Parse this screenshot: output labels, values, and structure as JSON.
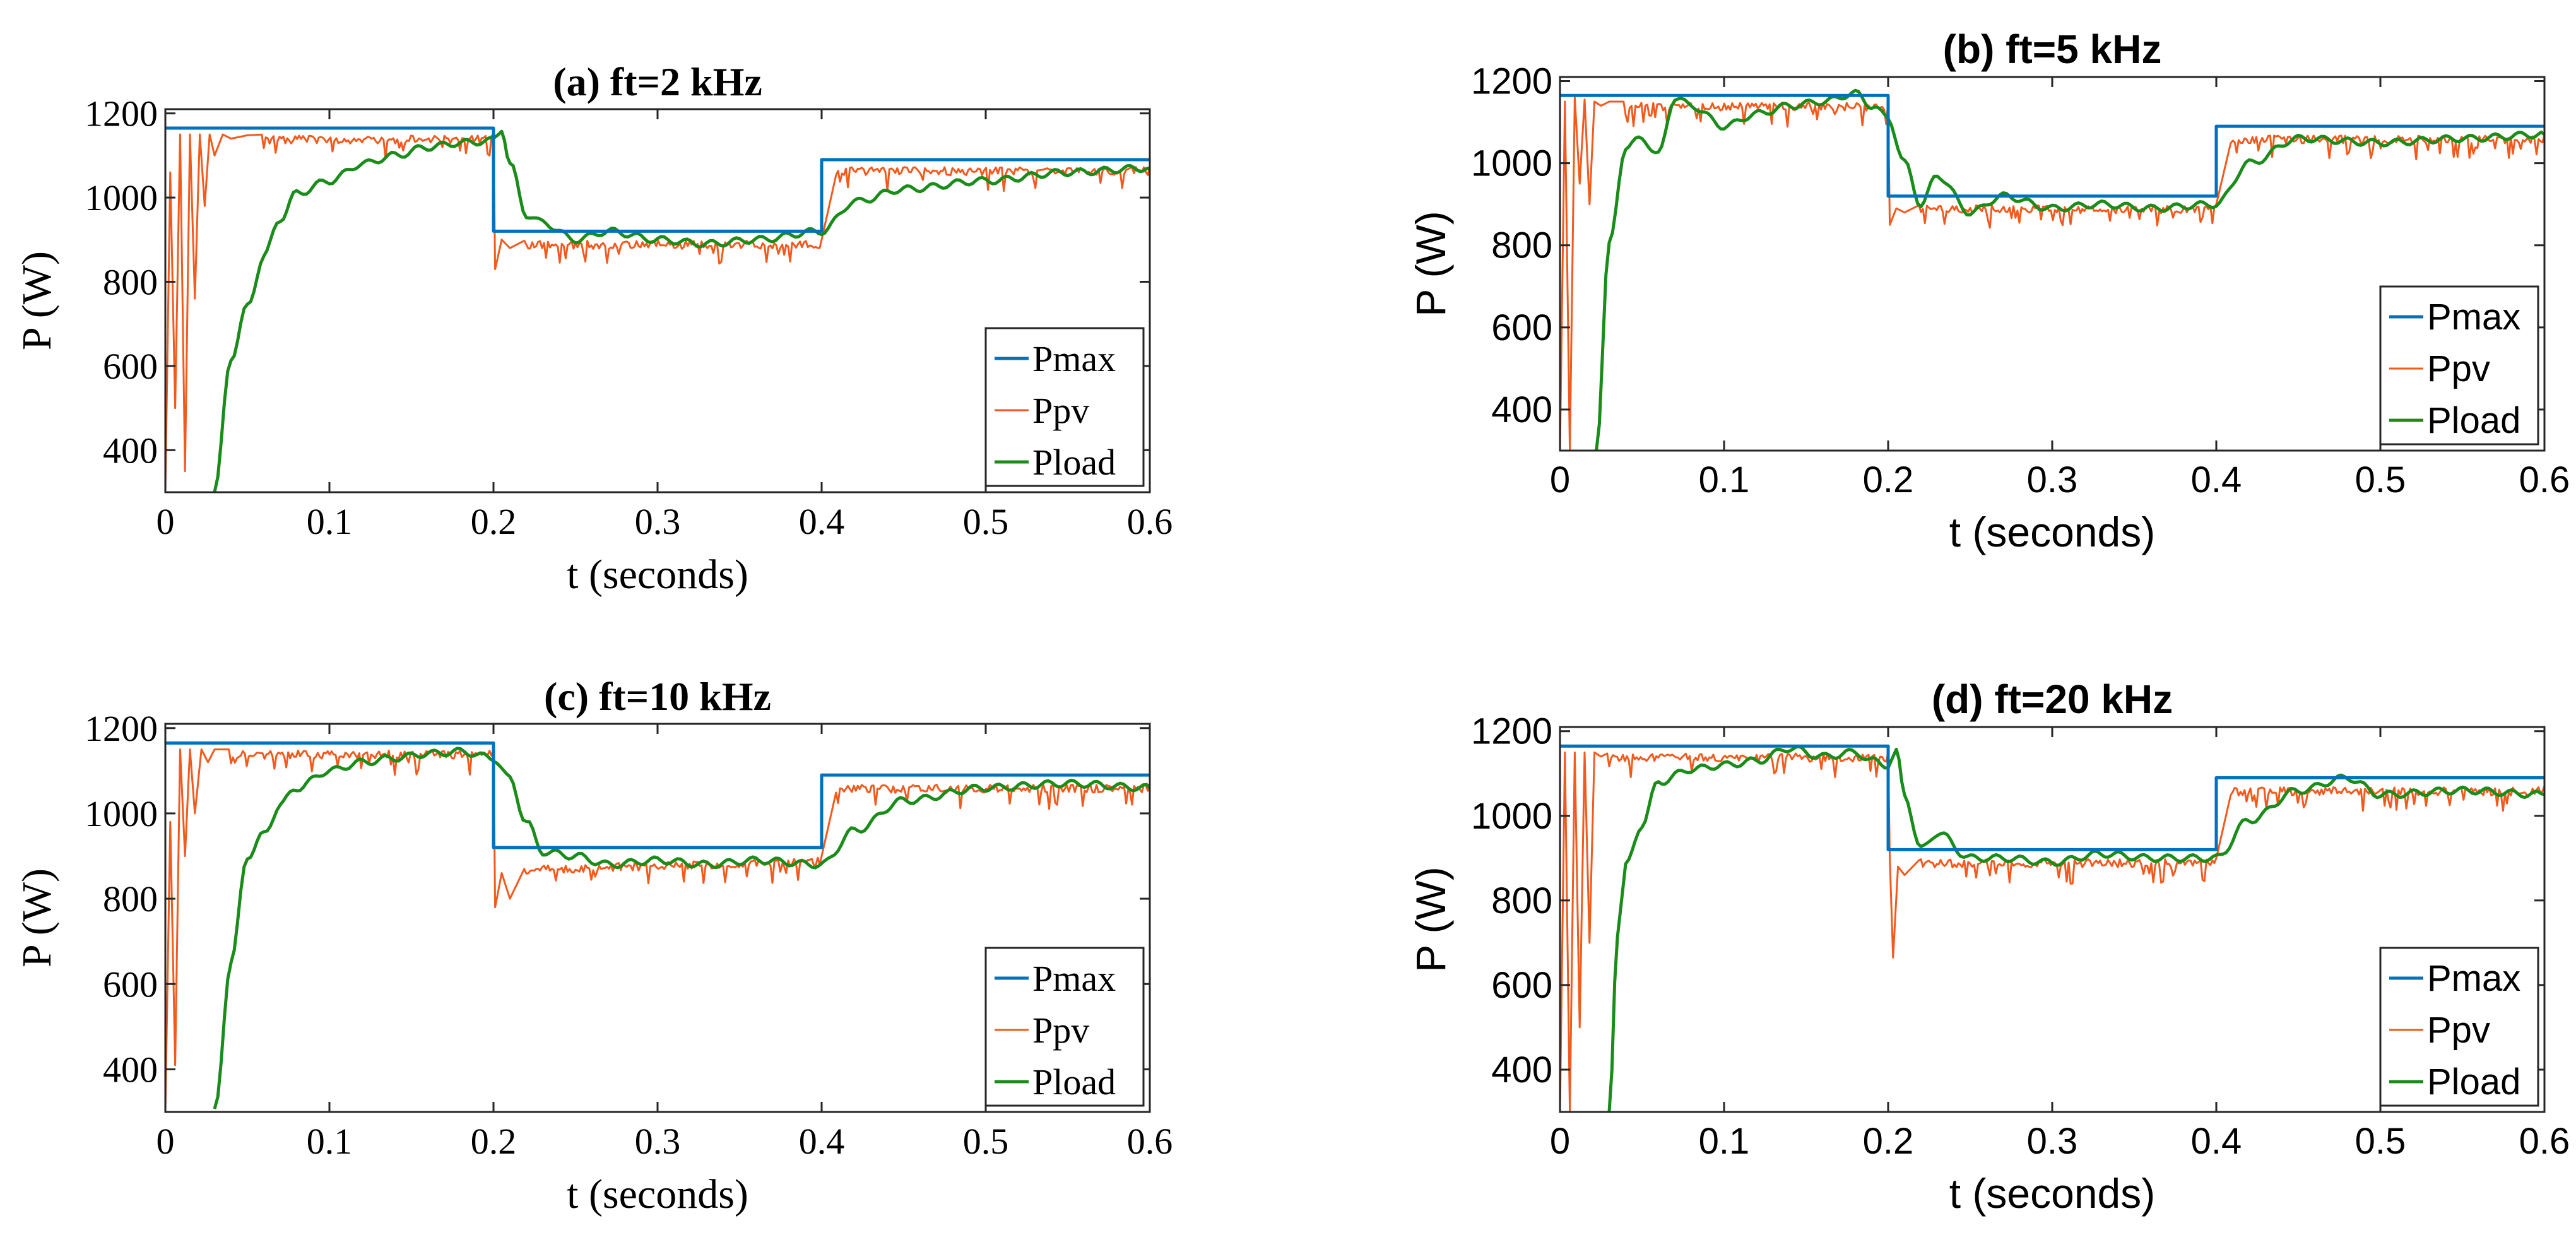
{
  "figure": {
    "colors": {
      "Pmax": "#0072BD",
      "Ppv": "#F25A1D",
      "Pload": "#1A8C1A",
      "axis": "#262626",
      "text": "#000000"
    }
  },
  "chart_data": [
    {
      "type": "line",
      "title": "(a) ft=2 kHz",
      "xlabel": "t (seconds)",
      "ylabel": "P (W)",
      "xlim": [
        0,
        0.6
      ],
      "ylim": [
        300,
        1210
      ],
      "xticks": [
        0,
        0.1,
        0.2,
        0.3,
        0.4,
        0.5,
        0.6
      ],
      "xtick_labels": [
        "0",
        "0.1",
        "0.2",
        "0.3",
        "0.4",
        "0.5",
        "0.6"
      ],
      "yticks": [
        400,
        600,
        800,
        1000,
        1200
      ],
      "ytick_labels": [
        "400",
        "600",
        "800",
        "1000",
        "1200"
      ],
      "legend": {
        "entries": [
          "Pmax",
          "Ppv",
          "Pload"
        ],
        "position": "bottom-right"
      },
      "series": [
        {
          "name": "Pmax",
          "x": [
            0,
            0.2,
            0.2,
            0.4,
            0.4,
            0.6
          ],
          "values": [
            1165,
            1165,
            920,
            920,
            1090,
            1090
          ]
        },
        {
          "name": "Ppv",
          "x": [
            0,
            0.003,
            0.006,
            0.009,
            0.012,
            0.015,
            0.018,
            0.021,
            0.024,
            0.027,
            0.03,
            0.035,
            0.04,
            0.05,
            0.06,
            0.2,
            0.201,
            0.205,
            0.21,
            0.22,
            0.4,
            0.41,
            0.6
          ],
          "values": [
            300,
            1060,
            500,
            1150,
            350,
            1150,
            760,
            1150,
            980,
            1150,
            1100,
            1150,
            1140,
            1148,
            1150,
            1150,
            830,
            900,
            880,
            900,
            900,
            1075,
            1075
          ]
        },
        {
          "name": "Pload",
          "x": [
            0.03,
            0.04,
            0.05,
            0.06,
            0.07,
            0.08,
            0.1,
            0.12,
            0.14,
            0.16,
            0.18,
            0.2,
            0.205,
            0.21,
            0.22,
            0.23,
            0.25,
            0.27,
            0.3,
            0.33,
            0.36,
            0.4,
            0.42,
            0.45,
            0.5,
            0.55,
            0.6
          ],
          "values": [
            300,
            620,
            740,
            860,
            950,
            1010,
            1040,
            1080,
            1100,
            1120,
            1130,
            1135,
            1165,
            1080,
            960,
            940,
            900,
            920,
            900,
            890,
            900,
            920,
            990,
            1020,
            1040,
            1060,
            1070
          ]
        }
      ]
    },
    {
      "type": "line",
      "title": "(b) ft=5 kHz",
      "xlabel": "t (seconds)",
      "ylabel": "P (W)",
      "xlim": [
        0,
        0.6
      ],
      "ylim": [
        300,
        1210
      ],
      "xticks": [
        0,
        0.1,
        0.2,
        0.3,
        0.4,
        0.5,
        0.6
      ],
      "xtick_labels": [
        "0",
        "0.1",
        "0.2",
        "0.3",
        "0.4",
        "0.5",
        "0.6"
      ],
      "yticks": [
        400,
        600,
        800,
        1000,
        1200
      ],
      "ytick_labels": [
        "400",
        "600",
        "800",
        "1000",
        "1200"
      ],
      "legend": {
        "entries": [
          "Pmax",
          "Ppv",
          "Pload"
        ],
        "position": "bottom-right"
      },
      "series": [
        {
          "name": "Pmax",
          "x": [
            0,
            0.2,
            0.2,
            0.4,
            0.4,
            0.6
          ],
          "values": [
            1165,
            1165,
            920,
            920,
            1090,
            1090
          ]
        },
        {
          "name": "Ppv",
          "x": [
            0,
            0.003,
            0.006,
            0.009,
            0.012,
            0.015,
            0.018,
            0.021,
            0.025,
            0.03,
            0.04,
            0.2,
            0.201,
            0.205,
            0.21,
            0.22,
            0.4,
            0.41,
            0.6
          ],
          "values": [
            300,
            1150,
            300,
            1160,
            950,
            1155,
            900,
            1150,
            1140,
            1150,
            1150,
            1150,
            850,
            890,
            880,
            900,
            900,
            1070,
            1070
          ]
        },
        {
          "name": "Pload",
          "x": [
            0.022,
            0.03,
            0.04,
            0.05,
            0.06,
            0.07,
            0.08,
            0.1,
            0.12,
            0.14,
            0.16,
            0.18,
            0.19,
            0.2,
            0.21,
            0.22,
            0.23,
            0.25,
            0.27,
            0.3,
            0.33,
            0.36,
            0.4,
            0.42,
            0.45,
            0.5,
            0.55,
            0.6
          ],
          "values": [
            300,
            800,
            1040,
            1060,
            1020,
            1160,
            1140,
            1090,
            1120,
            1140,
            1150,
            1170,
            1140,
            1110,
            1000,
            900,
            970,
            880,
            920,
            890,
            900,
            890,
            900,
            1000,
            1060,
            1050,
            1060,
            1070
          ]
        }
      ]
    },
    {
      "type": "line",
      "title": "(c) ft=10 kHz",
      "xlabel": "t (seconds)",
      "ylabel": "P (W)",
      "xlim": [
        0,
        0.6
      ],
      "ylim": [
        300,
        1210
      ],
      "xticks": [
        0,
        0.1,
        0.2,
        0.3,
        0.4,
        0.5,
        0.6
      ],
      "xtick_labels": [
        "0",
        "0.1",
        "0.2",
        "0.3",
        "0.4",
        "0.5",
        "0.6"
      ],
      "yticks": [
        400,
        600,
        800,
        1000,
        1200
      ],
      "ytick_labels": [
        "400",
        "600",
        "800",
        "1000",
        "1200"
      ],
      "legend": {
        "entries": [
          "Pmax",
          "Ppv",
          "Pload"
        ],
        "position": "bottom-right"
      },
      "series": [
        {
          "name": "Pmax",
          "x": [
            0,
            0.2,
            0.2,
            0.4,
            0.4,
            0.6
          ],
          "values": [
            1165,
            1165,
            920,
            920,
            1090,
            1090
          ]
        },
        {
          "name": "Ppv",
          "x": [
            0,
            0.003,
            0.006,
            0.009,
            0.012,
            0.015,
            0.018,
            0.022,
            0.026,
            0.03,
            0.04,
            0.2,
            0.201,
            0.205,
            0.21,
            0.22,
            0.4,
            0.41,
            0.6
          ],
          "values": [
            300,
            980,
            410,
            1150,
            900,
            1150,
            1000,
            1150,
            1120,
            1150,
            1150,
            1150,
            780,
            860,
            800,
            880,
            900,
            1070,
            1070
          ]
        },
        {
          "name": "Pload",
          "x": [
            0.03,
            0.04,
            0.05,
            0.06,
            0.07,
            0.08,
            0.1,
            0.12,
            0.14,
            0.16,
            0.18,
            0.2,
            0.21,
            0.22,
            0.23,
            0.25,
            0.27,
            0.3,
            0.33,
            0.36,
            0.4,
            0.42,
            0.45,
            0.5,
            0.55,
            0.6
          ],
          "values": [
            300,
            650,
            900,
            950,
            1020,
            1060,
            1100,
            1120,
            1130,
            1140,
            1145,
            1130,
            1080,
            980,
            910,
            900,
            880,
            890,
            880,
            890,
            880,
            960,
            1030,
            1060,
            1070,
            1060
          ]
        }
      ]
    },
    {
      "type": "line",
      "title": "(d) ft=20 kHz",
      "xlabel": "t (seconds)",
      "ylabel": "P (W)",
      "xlim": [
        0,
        0.6
      ],
      "ylim": [
        300,
        1210
      ],
      "xticks": [
        0,
        0.1,
        0.2,
        0.3,
        0.4,
        0.5,
        0.6
      ],
      "xtick_labels": [
        "0",
        "0.1",
        "0.2",
        "0.3",
        "0.4",
        "0.5",
        "0.6"
      ],
      "yticks": [
        400,
        600,
        800,
        1000,
        1200
      ],
      "ytick_labels": [
        "400",
        "600",
        "800",
        "1000",
        "1200"
      ],
      "legend": {
        "entries": [
          "Pmax",
          "Ppv",
          "Pload"
        ],
        "position": "bottom-right"
      },
      "series": [
        {
          "name": "Pmax",
          "x": [
            0,
            0.2,
            0.2,
            0.4,
            0.4,
            0.6
          ],
          "values": [
            1165,
            1165,
            920,
            920,
            1090,
            1090
          ]
        },
        {
          "name": "Ppv",
          "x": [
            0,
            0.003,
            0.006,
            0.009,
            0.012,
            0.015,
            0.018,
            0.021,
            0.025,
            0.03,
            0.2,
            0.201,
            0.203,
            0.206,
            0.21,
            0.22,
            0.4,
            0.41,
            0.6
          ],
          "values": [
            300,
            1150,
            300,
            1150,
            500,
            1150,
            700,
            1150,
            1140,
            1150,
            1150,
            900,
            665,
            880,
            860,
            900,
            900,
            1070,
            1070
          ]
        },
        {
          "name": "Pload",
          "x": [
            0.03,
            0.035,
            0.04,
            0.05,
            0.06,
            0.08,
            0.1,
            0.12,
            0.14,
            0.16,
            0.18,
            0.19,
            0.2,
            0.205,
            0.21,
            0.22,
            0.23,
            0.25,
            0.27,
            0.3,
            0.33,
            0.36,
            0.4,
            0.42,
            0.45,
            0.48,
            0.5,
            0.55,
            0.6
          ],
          "values": [
            300,
            720,
            880,
            980,
            1080,
            1110,
            1120,
            1130,
            1160,
            1140,
            1150,
            1130,
            1120,
            1150,
            1050,
            920,
            960,
            900,
            900,
            890,
            910,
            900,
            900,
            990,
            1060,
            1090,
            1050,
            1060,
            1050
          ]
        }
      ]
    }
  ]
}
